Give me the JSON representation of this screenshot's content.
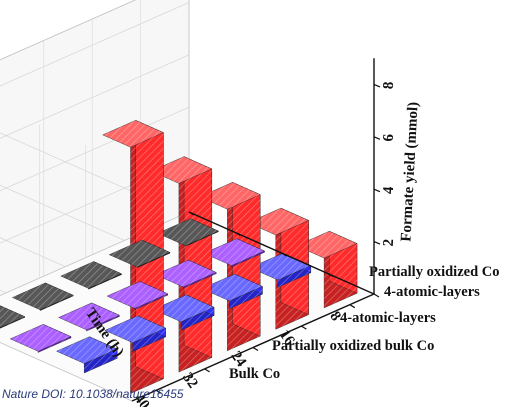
{
  "chart_data": {
    "type": "bar3d",
    "title": "",
    "zlabel": "Formate yield (mmol)",
    "ylabel": "Time (h)",
    "x_categories": [
      "Partially oxidized Co 4-atomic-layers",
      "4-atomic-layers",
      "Partially oxidized bulk Co",
      "Bulk Co"
    ],
    "x_tick_labels": [
      "Partially oxidized Co",
      "4-atomic-layers",
      "4-atomic-layers",
      "Partially oxidized bulk Co",
      "Bulk Co"
    ],
    "y_ticks": [
      "40",
      "32",
      "24",
      "16",
      "8"
    ],
    "z_ticks": [
      "2",
      "4",
      "6",
      "8"
    ],
    "zlim": [
      0,
      9
    ],
    "series": [
      {
        "category": "Partially oxidized Co 4-atomic-layers",
        "color": "#ff2a2a",
        "times": [
          8,
          16,
          24,
          32,
          40
        ],
        "values": [
          1.9,
          3.6,
          5.4,
          7.2,
          9.4
        ]
      },
      {
        "category": "4-atomic-layers",
        "color": "#2e2eff",
        "times": [
          8,
          16,
          24,
          32,
          40
        ],
        "values": [
          0.28,
          0.3,
          0.32,
          0.34,
          0.36
        ]
      },
      {
        "category": "Partially oxidized bulk Co",
        "color": "#8a22ff",
        "times": [
          8,
          16,
          24,
          32,
          40
        ],
        "values": [
          0.05,
          0.05,
          0.05,
          0.05,
          0.05
        ]
      },
      {
        "category": "Bulk Co",
        "color": "#161616",
        "times": [
          8,
          16,
          24,
          32,
          40
        ],
        "values": [
          0.03,
          0.03,
          0.03,
          0.03,
          0.03
        ]
      }
    ]
  },
  "source_credit": "Nature DOI: 10.1038/nature16455"
}
